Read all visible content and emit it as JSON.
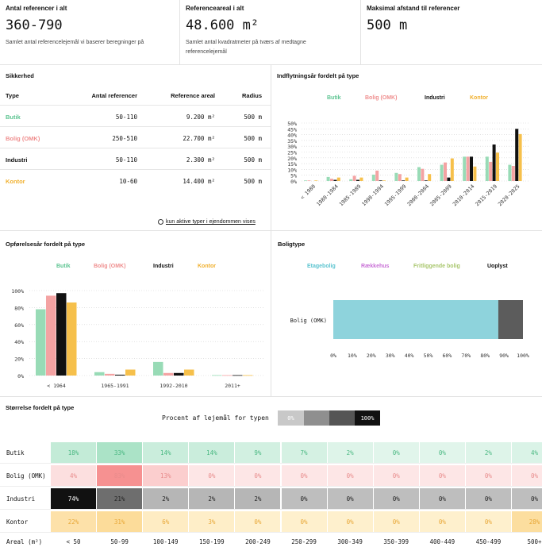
{
  "kpis": [
    {
      "title": "Antal referencer i alt",
      "value": "360-790",
      "desc": "Samlet antal referencelejemål vi baserer beregninger på"
    },
    {
      "title": "Referenceareal i alt",
      "value": "48.600 m²",
      "desc": "Samlet antal kvadratmeter på tværs af medtagne referencelejemål"
    },
    {
      "title": "Maksimal afstand til referencer",
      "value": "500 m",
      "desc": ""
    }
  ],
  "safety": {
    "title": "Sikkerhed",
    "headers": [
      "Type",
      "Antal referencer",
      "Reference areal",
      "Radius"
    ],
    "rows": [
      {
        "type": "Butik",
        "count": "50-110",
        "area": "9.200 m²",
        "radius": "500 m"
      },
      {
        "type": "Bolig (OMK)",
        "count": "250-510",
        "area": "22.700 m²",
        "radius": "500 m"
      },
      {
        "type": "Industri",
        "count": "50-110",
        "area": "2.300 m²",
        "radius": "500 m"
      },
      {
        "type": "Kontor",
        "count": "10-60",
        "area": "14.400 m²",
        "radius": "500 m"
      }
    ],
    "toggle_label": "kun aktive typer i ejendommen vises"
  },
  "colors": {
    "butik": "#98dbb6",
    "bolig": "#f4a3a3",
    "industri": "#111111",
    "kontor": "#f6c04b",
    "etagebolig": "#8ed3dc",
    "uoplyst": "#5c5c5c"
  },
  "chart_data": [
    {
      "type": "bar",
      "title": "Indflytningsår fordelt på type",
      "legend": [
        "Butik",
        "Bolig (OMK)",
        "Industri",
        "Kontor"
      ],
      "categories": [
        "< 1980",
        "1980-1984",
        "1985-1989",
        "1990-1994",
        "1995-1999",
        "2000-2004",
        "2005-2009",
        "2010-2014",
        "2015-2019",
        "2020-2025"
      ],
      "yticks": [
        "0%",
        "5%",
        "10%",
        "15%",
        "20%",
        "25%",
        "30%",
        "35%",
        "40%",
        "45%",
        "50%"
      ],
      "ylim": [
        0,
        50
      ],
      "series": [
        {
          "name": "Butik",
          "values": [
            0.5,
            3.5,
            1.5,
            5.5,
            7,
            12,
            14,
            21,
            21,
            14
          ]
        },
        {
          "name": "Bolig (OMK)",
          "values": [
            0.5,
            2,
            4.5,
            9,
            6,
            10.5,
            16,
            21,
            16.5,
            13
          ]
        },
        {
          "name": "Industri",
          "values": [
            0,
            1,
            1,
            0.5,
            0.5,
            0.5,
            3,
            21,
            31.5,
            45
          ]
        },
        {
          "name": "Kontor",
          "values": [
            0.5,
            3,
            3,
            0.5,
            3,
            6,
            19.5,
            12.5,
            24.5,
            40.5
          ]
        }
      ]
    },
    {
      "type": "bar",
      "title": "Opførelsesår fordelt på type",
      "legend": [
        "Butik",
        "Bolig (OMK)",
        "Industri",
        "Kontor"
      ],
      "categories": [
        "< 1964",
        "1965-1991",
        "1992-2010",
        "2011+"
      ],
      "yticks": [
        "0%",
        "20%",
        "40%",
        "60%",
        "80%",
        "100%"
      ],
      "ylim": [
        0,
        100
      ],
      "series": [
        {
          "name": "Butik",
          "values": [
            78,
            4,
            16,
            0.5
          ]
        },
        {
          "name": "Bolig (OMK)",
          "values": [
            94,
            2,
            3,
            0.5
          ]
        },
        {
          "name": "Industri",
          "values": [
            97,
            1,
            3,
            0.5
          ]
        },
        {
          "name": "Kontor",
          "values": [
            86,
            7,
            7,
            0.5
          ]
        }
      ]
    },
    {
      "type": "bar",
      "orientation": "horizontal-stacked",
      "title": "Boligtype",
      "legend": [
        "Etagebolig",
        "Rækkehus",
        "Fritliggende bolig",
        "Uoplyst"
      ],
      "categories": [
        "Bolig (OMK)"
      ],
      "xticks": [
        "0%",
        "10%",
        "20%",
        "30%",
        "40%",
        "50%",
        "60%",
        "70%",
        "80%",
        "90%",
        "100%"
      ],
      "series": [
        {
          "name": "Etagebolig",
          "values": [
            87
          ]
        },
        {
          "name": "Rækkehus",
          "values": [
            0
          ]
        },
        {
          "name": "Fritliggende bolig",
          "values": [
            0
          ]
        },
        {
          "name": "Uoplyst",
          "values": [
            13
          ]
        }
      ]
    },
    {
      "type": "heatmap",
      "title": "Størrelse fordelt på type",
      "scale_label": "Procent af lejemål for typen",
      "scale_ticks": [
        "0%",
        "100%"
      ],
      "rows": [
        "Butik",
        "Bolig (OMK)",
        "Industri",
        "Kontor"
      ],
      "xlabel": "Areal (m²)",
      "columns": [
        "< 50",
        "50-99",
        "100-149",
        "150-199",
        "200-249",
        "250-299",
        "300-349",
        "350-399",
        "400-449",
        "450-499",
        "500+"
      ],
      "values": [
        [
          "18%",
          "33%",
          "14%",
          "14%",
          "9%",
          "7%",
          "2%",
          "0%",
          "0%",
          "2%",
          "4%"
        ],
        [
          "4%",
          "83%",
          "13%",
          "0%",
          "0%",
          "0%",
          "0%",
          "0%",
          "0%",
          "0%",
          "0%"
        ],
        [
          "74%",
          "21%",
          "2%",
          "2%",
          "2%",
          "0%",
          "0%",
          "0%",
          "0%",
          "0%",
          "0%"
        ],
        [
          "22%",
          "31%",
          "6%",
          "3%",
          "0%",
          "0%",
          "0%",
          "0%",
          "0%",
          "0%",
          "28%"
        ]
      ]
    }
  ]
}
